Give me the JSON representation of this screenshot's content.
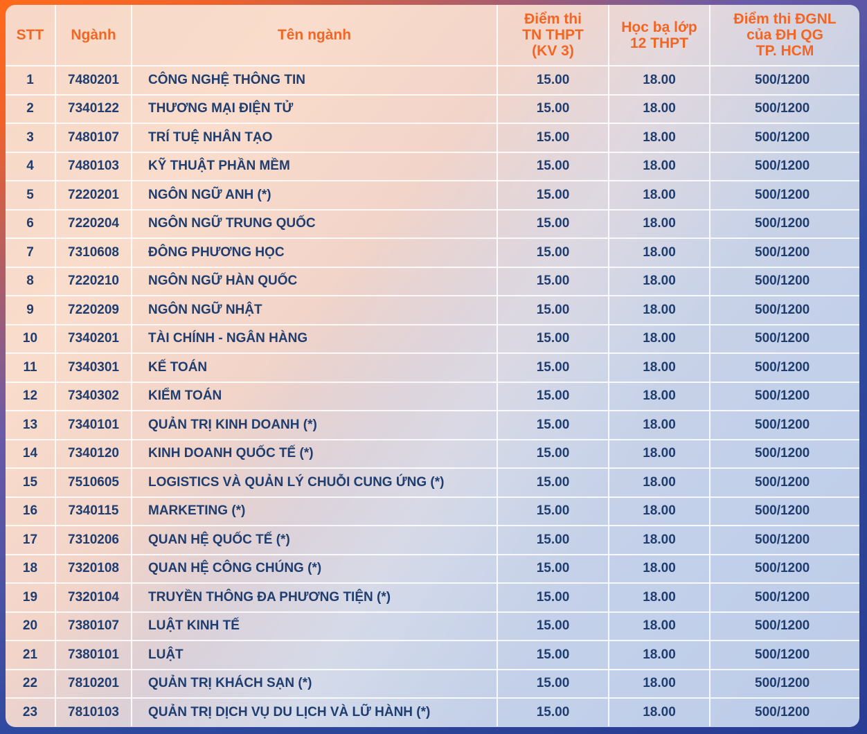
{
  "headers": {
    "stt": "STT",
    "code": "Ngành",
    "name": "Tên ngành",
    "tn_line1": "Điểm thi",
    "tn_line2": "TN THPT",
    "tn_line3": "(KV 3)",
    "hb_line1": "Học bạ lớp",
    "hb_line2": "12 THPT",
    "dg_line1": "Điểm thi ĐGNL",
    "dg_line2": "của ĐH QG",
    "dg_line3": "TP. HCM"
  },
  "rows": [
    {
      "stt": "1",
      "code": "7480201",
      "name": "CÔNG NGHỆ THÔNG TIN",
      "tn": "15.00",
      "hb": "18.00",
      "dg": "500/1200"
    },
    {
      "stt": "2",
      "code": "7340122",
      "name": "THƯƠNG MẠI ĐIỆN TỬ",
      "tn": "15.00",
      "hb": "18.00",
      "dg": "500/1200"
    },
    {
      "stt": "3",
      "code": "7480107",
      "name": "TRÍ TUỆ NHÂN TẠO",
      "tn": "15.00",
      "hb": "18.00",
      "dg": "500/1200"
    },
    {
      "stt": "4",
      "code": "7480103",
      "name": "KỸ THUẬT PHẦN MỀM",
      "tn": "15.00",
      "hb": "18.00",
      "dg": "500/1200"
    },
    {
      "stt": "5",
      "code": "7220201",
      "name": "NGÔN NGỮ ANH (*)",
      "tn": "15.00",
      "hb": "18.00",
      "dg": "500/1200"
    },
    {
      "stt": "6",
      "code": "7220204",
      "name": "NGÔN NGỮ TRUNG QUỐC",
      "tn": "15.00",
      "hb": "18.00",
      "dg": "500/1200"
    },
    {
      "stt": "7",
      "code": "7310608",
      "name": "ĐÔNG PHƯƠNG HỌC",
      "tn": "15.00",
      "hb": "18.00",
      "dg": "500/1200"
    },
    {
      "stt": "8",
      "code": "7220210",
      "name": "NGÔN NGỮ HÀN QUỐC",
      "tn": "15.00",
      "hb": "18.00",
      "dg": "500/1200"
    },
    {
      "stt": "9",
      "code": "7220209",
      "name": "NGÔN NGỮ NHẬT",
      "tn": "15.00",
      "hb": "18.00",
      "dg": "500/1200"
    },
    {
      "stt": "10",
      "code": "7340201",
      "name": "TÀI CHÍNH - NGÂN HÀNG",
      "tn": "15.00",
      "hb": "18.00",
      "dg": "500/1200"
    },
    {
      "stt": "11",
      "code": "7340301",
      "name": "KẾ TOÁN",
      "tn": "15.00",
      "hb": "18.00",
      "dg": "500/1200"
    },
    {
      "stt": "12",
      "code": "7340302",
      "name": "KIỂM TOÁN",
      "tn": "15.00",
      "hb": "18.00",
      "dg": "500/1200"
    },
    {
      "stt": "13",
      "code": "7340101",
      "name": "QUẢN TRỊ KINH DOANH (*)",
      "tn": "15.00",
      "hb": "18.00",
      "dg": "500/1200"
    },
    {
      "stt": "14",
      "code": "7340120",
      "name": "KINH DOANH QUỐC TẾ (*)",
      "tn": "15.00",
      "hb": "18.00",
      "dg": "500/1200"
    },
    {
      "stt": "15",
      "code": "7510605",
      "name": "LOGISTICS VÀ QUẢN LÝ CHUỖI CUNG ỨNG (*)",
      "tn": "15.00",
      "hb": "18.00",
      "dg": "500/1200"
    },
    {
      "stt": "16",
      "code": "7340115",
      "name": "MARKETING (*)",
      "tn": "15.00",
      "hb": "18.00",
      "dg": "500/1200"
    },
    {
      "stt": "17",
      "code": "7310206",
      "name": "QUAN HỆ QUỐC TẾ (*)",
      "tn": "15.00",
      "hb": "18.00",
      "dg": "500/1200"
    },
    {
      "stt": "18",
      "code": "7320108",
      "name": "QUAN HỆ CÔNG CHÚNG (*)",
      "tn": "15.00",
      "hb": "18.00",
      "dg": "500/1200"
    },
    {
      "stt": "19",
      "code": "7320104",
      "name": "TRUYỀN THÔNG ĐA PHƯƠNG TIỆN (*)",
      "tn": "15.00",
      "hb": "18.00",
      "dg": "500/1200"
    },
    {
      "stt": "20",
      "code": "7380107",
      "name": "LUẬT KINH TẾ",
      "tn": "15.00",
      "hb": "18.00",
      "dg": "500/1200"
    },
    {
      "stt": "21",
      "code": "7380101",
      "name": "LUẬT",
      "tn": "15.00",
      "hb": "18.00",
      "dg": "500/1200"
    },
    {
      "stt": "22",
      "code": "7810201",
      "name": "QUẢN TRỊ KHÁCH SẠN (*)",
      "tn": "15.00",
      "hb": "18.00",
      "dg": "500/1200"
    },
    {
      "stt": "23",
      "code": "7810103",
      "name": "QUẢN TRỊ DỊCH VỤ DU LỊCH VÀ LỮ HÀNH (*)",
      "tn": "15.00",
      "hb": "18.00",
      "dg": "500/1200"
    }
  ],
  "colors": {
    "header_text": "#f26522",
    "body_text": "#1f3d6e",
    "frame_orange": "#ff6a1a",
    "frame_blue": "#2a3f8f"
  }
}
